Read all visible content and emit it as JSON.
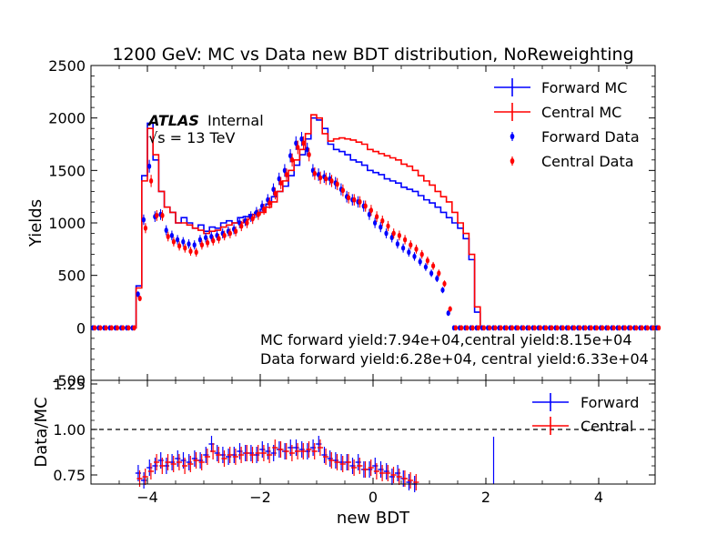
{
  "chart_data": [
    {
      "type": "line",
      "title": "1200 GeV: MC vs Data new BDT distribution, NoReweighting",
      "xlabel": "new BDT",
      "ylabel": "Yields",
      "xlim": [
        -5,
        5
      ],
      "ylim": [
        -500,
        2500
      ],
      "x_ticks": [
        -4,
        -2,
        0,
        2,
        4
      ],
      "y_ticks": [
        -500,
        0,
        500,
        1000,
        1500,
        2000,
        2500
      ],
      "grid": false,
      "legend_position": "top-right",
      "experiment_label": "ATLAS",
      "experiment_status": "Internal",
      "energy_label": "√s = 13 TeV",
      "annotations": [
        "MC forward yield:7.94e+04,central yield:8.15e+04",
        "Data forward yield:6.28e+04, central yield:6.33e+04"
      ],
      "bin_edges_start": -5.0,
      "bin_width": 0.1,
      "series": [
        {
          "name": "Forward MC",
          "style": "step",
          "color": "#0000ff",
          "values": [
            0,
            0,
            0,
            0,
            0,
            0,
            0,
            0,
            400,
            1450,
            1950,
            1600,
            1300,
            1150,
            1100,
            1000,
            1050,
            1000,
            950,
            980,
            920,
            960,
            950,
            1000,
            1020,
            1000,
            1050,
            1060,
            1080,
            1100,
            1130,
            1180,
            1250,
            1300,
            1350,
            1450,
            1550,
            1650,
            1800,
            2000,
            1980,
            1900,
            1750,
            1700,
            1680,
            1650,
            1600,
            1580,
            1550,
            1500,
            1480,
            1460,
            1420,
            1400,
            1380,
            1340,
            1320,
            1300,
            1260,
            1220,
            1190,
            1150,
            1100,
            1050,
            1000,
            950,
            850,
            650,
            150,
            0,
            0,
            0,
            0,
            0,
            0,
            0,
            0,
            0,
            0,
            0,
            0,
            0,
            0,
            0,
            0,
            0,
            0,
            0,
            0,
            0,
            0,
            0,
            0,
            0,
            0,
            0,
            0,
            0,
            0,
            0
          ]
        },
        {
          "name": "Central MC",
          "style": "step",
          "color": "#ff0000",
          "values": [
            0,
            0,
            0,
            0,
            0,
            0,
            0,
            0,
            380,
            1400,
            1900,
            1650,
            1300,
            1150,
            1100,
            1000,
            1000,
            980,
            950,
            930,
            900,
            920,
            930,
            960,
            980,
            1000,
            1000,
            1030,
            1050,
            1080,
            1100,
            1150,
            1200,
            1300,
            1400,
            1500,
            1600,
            1700,
            1850,
            2030,
            2000,
            1850,
            1780,
            1800,
            1810,
            1800,
            1790,
            1770,
            1750,
            1700,
            1680,
            1660,
            1640,
            1620,
            1600,
            1560,
            1540,
            1500,
            1450,
            1400,
            1360,
            1300,
            1250,
            1200,
            1100,
            1000,
            900,
            700,
            200,
            0,
            0,
            0,
            0,
            0,
            0,
            0,
            0,
            0,
            0,
            0,
            0,
            0,
            0,
            0,
            0,
            0,
            0,
            0,
            0,
            0,
            0,
            0,
            0,
            0,
            0,
            0,
            0,
            0,
            0,
            0
          ]
        },
        {
          "name": "Forward Data",
          "style": "points",
          "color": "#0000ff",
          "values": [
            0,
            0,
            0,
            0,
            0,
            0,
            0,
            0,
            320,
            1030,
            1540,
            1060,
            1080,
            930,
            880,
            840,
            820,
            800,
            790,
            840,
            860,
            870,
            880,
            900,
            920,
            940,
            1000,
            1020,
            1060,
            1100,
            1160,
            1220,
            1320,
            1420,
            1500,
            1640,
            1760,
            1800,
            1700,
            1500,
            1460,
            1440,
            1420,
            1380,
            1320,
            1250,
            1220,
            1200,
            1160,
            1080,
            1000,
            960,
            900,
            860,
            800,
            760,
            720,
            680,
            630,
            580,
            520,
            470,
            360,
            140,
            0,
            0,
            0,
            0,
            0,
            0,
            0,
            0,
            0,
            0,
            0,
            0,
            0,
            0,
            0,
            0,
            0,
            0,
            0,
            0,
            0,
            0,
            0,
            0,
            0,
            0,
            0,
            0,
            0,
            0,
            0,
            0,
            0,
            0,
            0,
            0,
            0
          ]
        },
        {
          "name": "Central Data",
          "style": "points",
          "color": "#ff0000",
          "values": [
            0,
            0,
            0,
            0,
            0,
            0,
            0,
            0,
            280,
            950,
            1400,
            1070,
            1070,
            870,
            820,
            780,
            760,
            730,
            720,
            790,
            810,
            830,
            850,
            880,
            900,
            920,
            970,
            1000,
            1040,
            1080,
            1130,
            1190,
            1280,
            1380,
            1460,
            1600,
            1720,
            1760,
            1650,
            1470,
            1430,
            1420,
            1400,
            1370,
            1310,
            1240,
            1220,
            1200,
            1160,
            1120,
            1060,
            1020,
            970,
            900,
            880,
            840,
            790,
            750,
            700,
            640,
            590,
            520,
            420,
            180,
            0,
            0,
            0,
            0,
            0,
            0,
            0,
            0,
            0,
            0,
            0,
            0,
            0,
            0,
            0,
            0,
            0,
            0,
            0,
            0,
            0,
            0,
            0,
            0,
            0,
            0,
            0,
            0,
            0,
            0,
            0,
            0,
            0,
            0,
            0,
            0,
            0
          ]
        }
      ]
    },
    {
      "type": "scatter",
      "xlabel": "new BDT",
      "ylabel": "Data/MC",
      "xlim": [
        -5,
        5
      ],
      "ylim": [
        0.7,
        1.27
      ],
      "x_ticks": [
        -4,
        -2,
        0,
        2,
        4
      ],
      "y_ticks": [
        0.75,
        1.0,
        1.25
      ],
      "reference_line": 1.0,
      "legend_position": "top-right",
      "grid": false,
      "bin_edges_start": -5.0,
      "bin_width": 0.1,
      "series": [
        {
          "name": "Forward",
          "color": "#0000ff",
          "x": [
            -4.15,
            -4.05,
            -3.95,
            -3.85,
            -3.75,
            -3.65,
            -3.55,
            -3.45,
            -3.35,
            -3.25,
            -3.15,
            -3.05,
            -2.95,
            -2.85,
            -2.75,
            -2.65,
            -2.55,
            -2.45,
            -2.35,
            -2.25,
            -2.15,
            -2.05,
            -1.95,
            -1.85,
            -1.75,
            -1.65,
            -1.55,
            -1.45,
            -1.35,
            -1.25,
            -1.15,
            -1.05,
            -0.95,
            -0.85,
            -0.75,
            -0.65,
            -0.55,
            -0.45,
            -0.35,
            -0.25,
            -0.15,
            -0.05,
            0.05,
            0.15,
            0.25,
            0.35,
            0.45,
            0.55,
            0.65,
            0.75,
            2.15
          ],
          "values": [
            0.76,
            0.72,
            0.79,
            0.8,
            0.83,
            0.8,
            0.82,
            0.84,
            0.83,
            0.82,
            0.84,
            0.83,
            0.86,
            0.92,
            0.87,
            0.86,
            0.85,
            0.86,
            0.88,
            0.87,
            0.87,
            0.86,
            0.89,
            0.88,
            0.87,
            0.89,
            0.88,
            0.9,
            0.9,
            0.89,
            0.88,
            0.9,
            0.92,
            0.86,
            0.84,
            0.83,
            0.82,
            0.82,
            0.8,
            0.82,
            0.78,
            0.78,
            0.8,
            0.78,
            0.77,
            0.74,
            0.76,
            0.73,
            0.71,
            0.7,
            0.96
          ]
        },
        {
          "name": "Central",
          "color": "#ff0000",
          "x": [
            -4.15,
            -4.05,
            -3.95,
            -3.85,
            -3.75,
            -3.65,
            -3.55,
            -3.45,
            -3.35,
            -3.25,
            -3.15,
            -3.05,
            -2.95,
            -2.85,
            -2.75,
            -2.65,
            -2.55,
            -2.45,
            -2.35,
            -2.25,
            -2.15,
            -2.05,
            -1.95,
            -1.85,
            -1.75,
            -1.65,
            -1.55,
            -1.45,
            -1.35,
            -1.25,
            -1.15,
            -1.05,
            -0.95,
            -0.85,
            -0.75,
            -0.65,
            -0.55,
            -0.45,
            -0.35,
            -0.25,
            -0.15,
            -0.05,
            0.05,
            0.15,
            0.25,
            0.35,
            0.45,
            0.55,
            0.65,
            0.75
          ],
          "values": [
            0.73,
            0.74,
            0.77,
            0.82,
            0.8,
            0.82,
            0.81,
            0.82,
            0.8,
            0.81,
            0.83,
            0.82,
            0.85,
            0.88,
            0.86,
            0.84,
            0.86,
            0.85,
            0.86,
            0.87,
            0.86,
            0.87,
            0.87,
            0.86,
            0.9,
            0.89,
            0.88,
            0.87,
            0.88,
            0.88,
            0.89,
            0.88,
            0.9,
            0.85,
            0.83,
            0.82,
            0.81,
            0.82,
            0.79,
            0.8,
            0.78,
            0.79,
            0.77,
            0.76,
            0.76,
            0.75,
            0.74,
            0.73,
            0.72,
            0.71
          ]
        }
      ]
    }
  ]
}
